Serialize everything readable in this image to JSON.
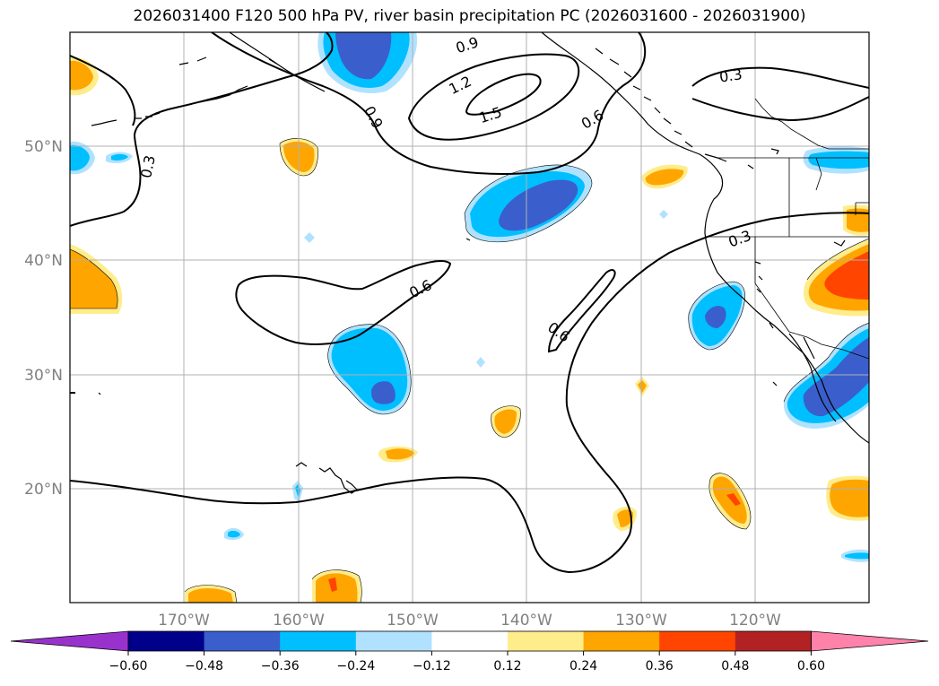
{
  "title": "2026031400 F120 500 hPa PV, river basin precipitation PC (2026031600 - 2026031900)",
  "map": {
    "lon_range": [
      -180,
      -110
    ],
    "lat_range": [
      10,
      60
    ],
    "lat_ticks": [
      "20°N",
      "30°N",
      "40°N",
      "50°N"
    ],
    "lon_ticks": [
      "170°W",
      "160°W",
      "150°W",
      "140°W",
      "130°W",
      "120°W"
    ]
  },
  "contour_labels": [
    "0.9",
    "1.2",
    "1.5",
    "0.6",
    "0.3",
    "0.9",
    "0.3",
    "0.6",
    "0.3",
    "0.6"
  ],
  "colorbar": {
    "colors": [
      "#9932cc",
      "#00008b",
      "#3a5fcd",
      "#00bfff",
      "#b0e2ff",
      "#ffffff",
      "#ffec8b",
      "#ffa500",
      "#ff4500",
      "#b22222",
      "#ff82ab"
    ],
    "ticks": [
      "−0.60",
      "−0.48",
      "−0.36",
      "−0.24",
      "−0.12",
      "0.12",
      "0.24",
      "0.36",
      "0.48",
      "0.60"
    ]
  }
}
